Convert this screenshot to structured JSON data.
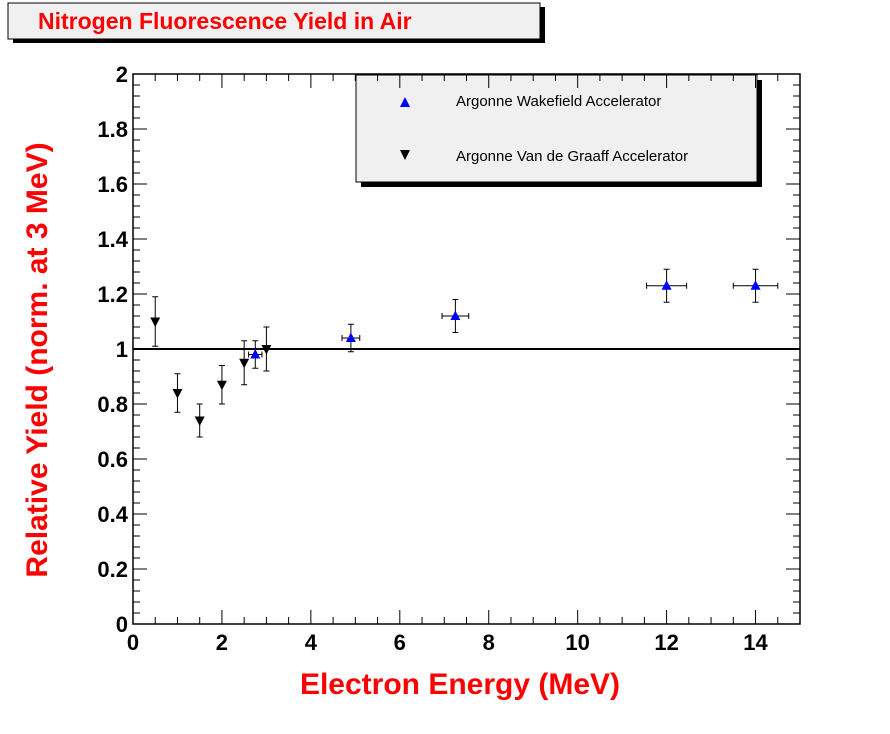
{
  "chart_data": {
    "type": "scatter",
    "title": "Nitrogen Fluorescence Yield in Air",
    "xlabel": "Electron Energy (MeV)",
    "ylabel": "Relative Yield (norm. at 3 MeV)",
    "xlim": [
      0,
      15
    ],
    "ylim": [
      0,
      2
    ],
    "x_ticks": [
      "0",
      "2",
      "4",
      "6",
      "8",
      "10",
      "12",
      "14"
    ],
    "x_tick_values": [
      0,
      2,
      4,
      6,
      8,
      10,
      12,
      14
    ],
    "y_ticks": [
      "0",
      "0.2",
      "0.4",
      "0.6",
      "0.8",
      "1",
      "1.2",
      "1.4",
      "1.6",
      "1.8",
      "2"
    ],
    "y_tick_values": [
      0,
      0.2,
      0.4,
      0.6,
      0.8,
      1.0,
      1.2,
      1.4,
      1.6,
      1.8,
      2.0
    ],
    "reference_line_y": 1.0,
    "grid": false,
    "legend_position": "top-right",
    "series": [
      {
        "name": "Argonne Wakefield Accelerator",
        "marker": "triangle-up",
        "color": "#0000ff",
        "points": [
          {
            "x": 2.75,
            "y": 0.98,
            "xerr": 0.15,
            "yerr": 0.05
          },
          {
            "x": 4.9,
            "y": 1.04,
            "xerr": 0.2,
            "yerr": 0.05
          },
          {
            "x": 7.25,
            "y": 1.12,
            "xerr": 0.3,
            "yerr": 0.06
          },
          {
            "x": 12.0,
            "y": 1.23,
            "xerr": 0.45,
            "yerr": 0.06
          },
          {
            "x": 14.0,
            "y": 1.23,
            "xerr": 0.5,
            "yerr": 0.06
          }
        ]
      },
      {
        "name": "Argonne Van de Graaff Accelerator",
        "marker": "triangle-down",
        "color": "#000000",
        "points": [
          {
            "x": 0.5,
            "y": 1.1,
            "xerr": 0,
            "yerr": 0.09
          },
          {
            "x": 1.0,
            "y": 0.84,
            "xerr": 0,
            "yerr": 0.07
          },
          {
            "x": 1.5,
            "y": 0.74,
            "xerr": 0,
            "yerr": 0.06
          },
          {
            "x": 2.0,
            "y": 0.87,
            "xerr": 0,
            "yerr": 0.07
          },
          {
            "x": 2.5,
            "y": 0.95,
            "xerr": 0,
            "yerr": 0.08
          },
          {
            "x": 3.0,
            "y": 1.0,
            "xerr": 0,
            "yerr": 0.08
          }
        ]
      }
    ]
  }
}
